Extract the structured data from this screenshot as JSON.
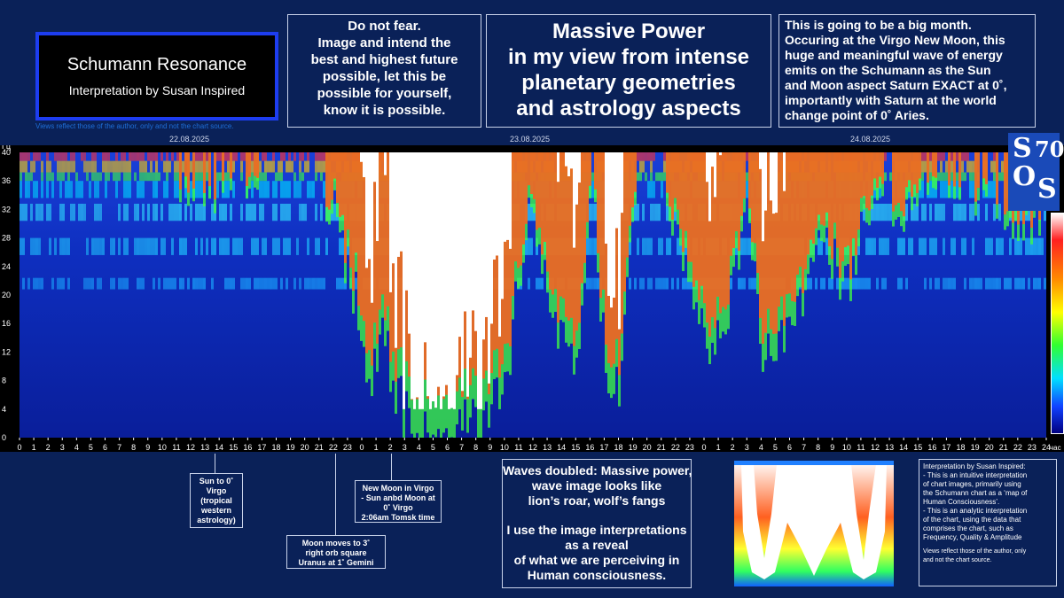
{
  "title_box": {
    "title": "Schumann Resonance",
    "subtitle": "Interpretation by Susan Inspired"
  },
  "views_note": "Views reflect those of the author, only and not the chart source.",
  "box_fear": {
    "lines": [
      "Do not fear.",
      "Image and intend the",
      "best and highest future",
      "possible, let this be",
      "possible for yourself,",
      "know it is possible."
    ]
  },
  "box_power": {
    "lines": [
      "Massive Power",
      "in my view from intense",
      "planetary geometries",
      "and astrology aspects"
    ]
  },
  "box_month": {
    "lines": [
      "This is going to be a big month.",
      "Occuring at the Virgo New Moon, this",
      "huge and meaningful wave of energy",
      "emits on the Schumann as the Sun",
      "and Moon aspect Saturn EXACT at 0˚,",
      "importantly with Saturn at the world",
      "change point of  0˚ Aries."
    ]
  },
  "dates": [
    "22.08.2025",
    "23.08.2025",
    "24.08.2025"
  ],
  "logo": {
    "s1": "S",
    "o": "O",
    "s2": "S",
    "n": "70"
  },
  "colors": {
    "background": "#0a2158",
    "title_border": "#1d3df0",
    "box_border": "#c9d3ea",
    "date_text": "#cfd6ea"
  },
  "chart_data": {
    "type": "heatmap",
    "y_unit_label": "Гц",
    "y_tick_labels": [
      "40",
      "36",
      "32",
      "28",
      "24",
      "20",
      "16",
      "12",
      "8",
      "4",
      "0"
    ],
    "ylim": [
      0,
      40
    ],
    "x_unit_label": "час",
    "x_tick_labels": [
      "0",
      "1",
      "2",
      "3",
      "4",
      "5",
      "6",
      "7",
      "8",
      "9",
      "10",
      "11",
      "12",
      "13",
      "14",
      "15",
      "16",
      "17",
      "18",
      "19",
      "20",
      "21",
      "22",
      "23",
      "0",
      "1",
      "2",
      "3",
      "4",
      "5",
      "6",
      "7",
      "8",
      "9",
      "10",
      "11",
      "12",
      "13",
      "14",
      "15",
      "16",
      "17",
      "18",
      "19",
      "20",
      "21",
      "22",
      "23",
      "0",
      "1",
      "2",
      "3",
      "4",
      "5",
      "6",
      "7",
      "8",
      "9",
      "10",
      "11",
      "12",
      "13",
      "14",
      "15",
      "16",
      "17",
      "18",
      "19",
      "20",
      "21",
      "22",
      "23",
      "24"
    ],
    "x_range_hours": [
      0,
      72
    ],
    "date_labels": [
      {
        "label": "22.08.2025",
        "hour": 12
      },
      {
        "label": "23.08.2025",
        "hour": 36
      },
      {
        "label": "24.08.2025",
        "hour": 60
      }
    ],
    "intensity_profile_hours": [
      [
        0,
        0.4
      ],
      [
        5,
        0.35
      ],
      [
        9,
        0.45
      ],
      [
        13,
        0.5
      ],
      [
        16,
        0.48
      ],
      [
        20,
        0.42
      ],
      [
        22,
        0.55
      ],
      [
        23.5,
        0.72
      ],
      [
        24.5,
        0.9
      ],
      [
        25.5,
        0.8
      ],
      [
        26.5,
        0.92
      ],
      [
        27.5,
        1.0
      ],
      [
        30,
        1.0
      ],
      [
        32,
        0.96
      ],
      [
        34,
        0.9
      ],
      [
        35.5,
        0.55
      ],
      [
        37,
        0.7
      ],
      [
        39,
        0.9
      ],
      [
        40,
        0.45
      ],
      [
        41,
        0.85
      ],
      [
        42,
        0.88
      ],
      [
        43,
        0.5
      ],
      [
        44,
        0.4
      ],
      [
        46,
        0.6
      ],
      [
        48,
        0.82
      ],
      [
        49.5,
        0.78
      ],
      [
        51,
        0.5
      ],
      [
        52,
        0.85
      ],
      [
        54,
        0.8
      ],
      [
        56,
        0.62
      ],
      [
        58,
        0.7
      ],
      [
        60,
        0.5
      ],
      [
        62,
        0.55
      ],
      [
        64,
        0.45
      ],
      [
        68,
        0.52
      ],
      [
        71,
        0.6
      ],
      [
        72,
        0.55
      ]
    ],
    "colorscale": [
      "#000080",
      "#1040ff",
      "#00e0ff",
      "#30ff30",
      "#ffff00",
      "#ff8c00",
      "#ff2020",
      "#ffffff"
    ],
    "legend_placement": "right colorbar",
    "grid": false
  },
  "annotations": [
    {
      "lines": [
        "Sun to 0˚",
        "Virgo",
        "(tropical",
        "western",
        "astrology)"
      ]
    },
    {
      "lines": [
        "Moon moves to 3˚",
        "right orb square",
        "Uranus at 1˚ Gemini"
      ]
    },
    {
      "lines": [
        "New Moon in Virgo",
        "- Sun anbd Moon at",
        "0˚ Virgo",
        "2:06am Tomsk time"
      ]
    }
  ],
  "waves_box": {
    "lines_a": [
      "Waves doubled: Massive power,",
      "wave image looks like",
      "lion’s roar, wolf’s fangs"
    ],
    "lines_b": [
      "I use the image interpretations",
      "as a reveal",
      "of what we are perceiving in",
      "Human consciousness."
    ]
  },
  "info_box": {
    "lines": [
      "Interpretation by Susan Inspired:",
      "- This is an intuitive interpretation",
      "of chart images, primarily using",
      "the Schumann chart as a ‘map of",
      "Human Consciousness’.",
      "- This is an analytic interpretation",
      "of the chart, using the data that",
      "comprises the chart, such as",
      "Frequency, Quality & Amplitude"
    ],
    "note_lines": [
      "Views reflect those of the author, only",
      "and not the chart source."
    ]
  }
}
